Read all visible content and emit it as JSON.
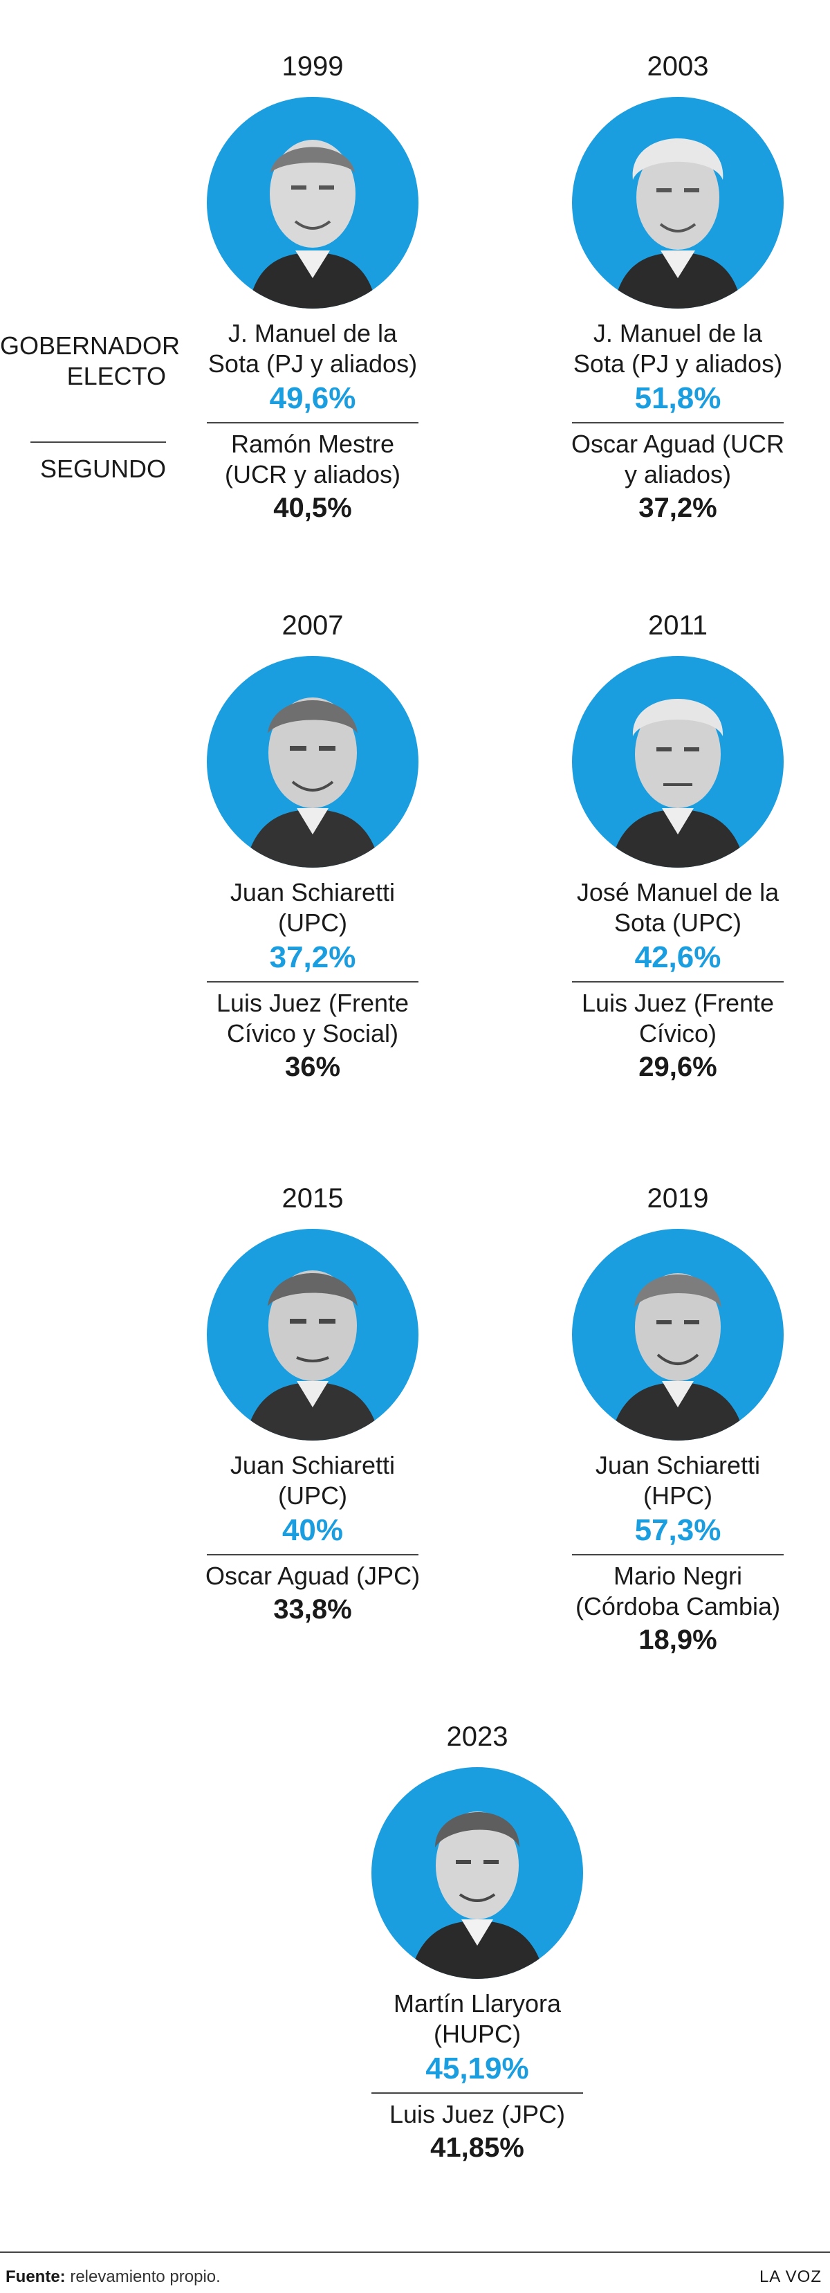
{
  "labels": {
    "elected": "GOBERNADOR ELECTO",
    "second": "SEGUNDO"
  },
  "elections": [
    {
      "year": "1999",
      "winner": "J. Manuel de la Sota (PJ y aliados)",
      "winner_pct": "49,6%",
      "runner": "Ramón Mestre (UCR y aliados)",
      "runner_pct": "40,5%"
    },
    {
      "year": "2003",
      "winner": "J. Manuel de la Sota (PJ y aliados)",
      "winner_pct": "51,8%",
      "runner": "Oscar Aguad (UCR y aliados)",
      "runner_pct": "37,2%"
    },
    {
      "year": "2007",
      "winner": "Juan Schiaretti (UPC)",
      "winner_pct": "37,2%",
      "runner": "Luis Juez (Frente Cívico y Social)",
      "runner_pct": "36%"
    },
    {
      "year": "2011",
      "winner": "José Manuel de la Sota (UPC)",
      "winner_pct": "42,6%",
      "runner": "Luis Juez (Frente Cívico)",
      "runner_pct": "29,6%"
    },
    {
      "year": "2015",
      "winner": "Juan Schiaretti (UPC)",
      "winner_pct": "40%",
      "runner": "Oscar Aguad (JPC)",
      "runner_pct": "33,8%"
    },
    {
      "year": "2019",
      "winner": "Juan Schiaretti (HPC)",
      "winner_pct": "57,3%",
      "runner": "Mario Negri (Córdoba Cambia)",
      "runner_pct": "18,9%"
    },
    {
      "year": "2023",
      "winner": "Martín Llaryora (HUPC)",
      "winner_pct": "45,19%",
      "runner": "Luis Juez (JPC)",
      "runner_pct": "41,85%"
    }
  ],
  "footer": {
    "source_label": "Fuente:",
    "source_text": " relevamiento propio.",
    "brand": "LA VOZ"
  },
  "colors": {
    "accent": "#1b9ee0",
    "text": "#1a1a1a"
  }
}
